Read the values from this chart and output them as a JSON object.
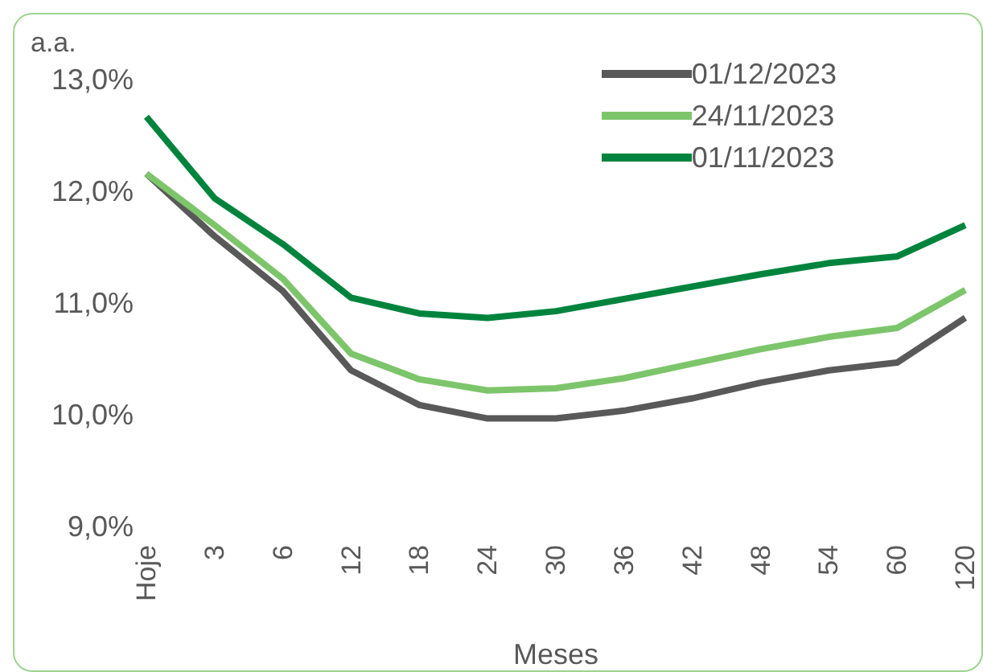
{
  "chart_data": {
    "type": "line",
    "ylabel": "a.a.",
    "xlabel": "Meses",
    "categories": [
      "Hoje",
      "3",
      "6",
      "12",
      "18",
      "24",
      "30",
      "36",
      "42",
      "48",
      "54",
      "60",
      "120"
    ],
    "series": [
      {
        "name": "01/12/2023",
        "color": "#595959",
        "values": [
          12.15,
          11.59,
          11.1,
          10.39,
          10.08,
          9.96,
          9.96,
          10.03,
          10.14,
          10.28,
          10.39,
          10.46,
          10.86
        ]
      },
      {
        "name": "24/11/2023",
        "color": "#7dc56b",
        "values": [
          12.15,
          11.69,
          11.21,
          10.54,
          10.31,
          10.21,
          10.23,
          10.32,
          10.45,
          10.58,
          10.69,
          10.77,
          11.11
        ]
      },
      {
        "name": "01/11/2023",
        "color": "#00843d",
        "values": [
          12.66,
          11.93,
          11.52,
          11.04,
          10.9,
          10.86,
          10.92,
          11.03,
          11.14,
          11.25,
          11.35,
          11.41,
          11.69
        ]
      }
    ],
    "ylim": [
      9,
      13
    ],
    "yticks": [
      {
        "value": 9,
        "label": "9,0%"
      },
      {
        "value": 10,
        "label": "10,0%"
      },
      {
        "value": 11,
        "label": "11,0%"
      },
      {
        "value": 12,
        "label": "12,0%"
      },
      {
        "value": 13,
        "label": "13,0%"
      }
    ],
    "grid": false,
    "legend": "top right",
    "marker": "none",
    "line_style": "solid"
  }
}
